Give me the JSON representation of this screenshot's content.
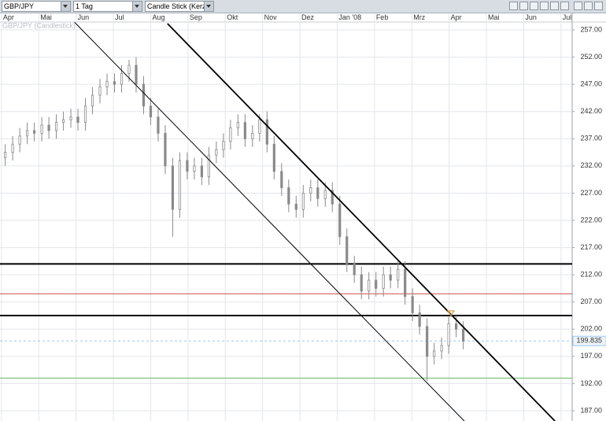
{
  "toolbar": {
    "symbol": "GBP/JPY",
    "period": "1 Tag",
    "style": "Candle Stick (Kerze"
  },
  "chart_data": {
    "type": "candlestick",
    "watermark": "GBP/JPY (Candlestick)",
    "xlim": [
      -0.04,
      15.3
    ],
    "xticks": [
      {
        "value": 0,
        "label": "Apr"
      },
      {
        "value": 1,
        "label": "Mai"
      },
      {
        "value": 2,
        "label": "Jun"
      },
      {
        "value": 3,
        "label": "Jul"
      },
      {
        "value": 4,
        "label": "Aug"
      },
      {
        "value": 5,
        "label": "Sep"
      },
      {
        "value": 6,
        "label": "Okt"
      },
      {
        "value": 7,
        "label": "Nov"
      },
      {
        "value": 8,
        "label": "Dez"
      },
      {
        "value": 9,
        "label": "Jan '08"
      },
      {
        "value": 10,
        "label": "Feb"
      },
      {
        "value": 11,
        "label": "Mrz"
      },
      {
        "value": 12,
        "label": "Apr"
      },
      {
        "value": 13,
        "label": "Mai"
      },
      {
        "value": 14,
        "label": "Jun"
      },
      {
        "value": 15,
        "label": "Jul"
      }
    ],
    "ylim": [
      185.12,
      258.45
    ],
    "yticks": [
      {
        "value": 187,
        "label": "187.00"
      },
      {
        "value": 192,
        "label": "192.00"
      },
      {
        "value": 197,
        "label": "197.00"
      },
      {
        "value": 202,
        "label": "202.00"
      },
      {
        "value": 207,
        "label": "207.00"
      },
      {
        "value": 212,
        "label": "212.00"
      },
      {
        "value": 217,
        "label": "217.00"
      },
      {
        "value": 222,
        "label": "222.00"
      },
      {
        "value": 227,
        "label": "227.00"
      },
      {
        "value": 232,
        "label": "232.00"
      },
      {
        "value": 237,
        "label": "237.00"
      },
      {
        "value": 242,
        "label": "242.00"
      },
      {
        "value": 247,
        "label": "247.00"
      },
      {
        "value": 252,
        "label": "252.00"
      },
      {
        "value": 257,
        "label": "257.00"
      }
    ],
    "grid": true,
    "color": "#8a8a8a",
    "x": [
      0.1,
      0.3,
      0.49,
      0.69,
      0.88,
      1.08,
      1.27,
      1.47,
      1.66,
      1.86,
      2.05,
      2.25,
      2.44,
      2.64,
      2.83,
      3.03,
      3.22,
      3.42,
      3.61,
      3.81,
      4.0,
      4.2,
      4.39,
      4.59,
      4.78,
      4.98,
      5.17,
      5.37,
      5.56,
      5.76,
      5.95,
      6.14,
      6.34,
      6.53,
      6.73,
      6.92,
      7.12,
      7.31,
      7.51,
      7.7,
      7.9,
      8.09,
      8.29,
      8.48,
      8.68,
      8.87,
      9.07,
      9.26,
      9.46,
      9.65,
      9.85,
      10.04,
      10.24,
      10.43,
      10.63,
      10.82,
      11.02,
      11.21,
      11.41,
      11.6,
      11.8,
      11.99,
      12.19,
      12.38
    ],
    "ohlc": [
      [
        233.5,
        236,
        232,
        234.5
      ],
      [
        234.5,
        237.5,
        233,
        236
      ],
      [
        236,
        239,
        234.5,
        237.5
      ],
      [
        237.5,
        240,
        236,
        238.5
      ],
      [
        238.5,
        240,
        236.5,
        238
      ],
      [
        238,
        241,
        236.5,
        239.5
      ],
      [
        239.5,
        241,
        237,
        238.5
      ],
      [
        238.5,
        241.5,
        237,
        240
      ],
      [
        240,
        242,
        238.5,
        240.5
      ],
      [
        240.5,
        242.5,
        239,
        241
      ],
      [
        241,
        242.5,
        238.5,
        240
      ],
      [
        240,
        244.5,
        238.5,
        243
      ],
      [
        243,
        246.5,
        241.5,
        245
      ],
      [
        245,
        248,
        243.5,
        246.5
      ],
      [
        246.5,
        249,
        245,
        247.5
      ],
      [
        247.5,
        249,
        245.5,
        247
      ],
      [
        247,
        250.5,
        245.5,
        249
      ],
      [
        249,
        251.5,
        247.5,
        250.5
      ],
      [
        250.5,
        252,
        245.5,
        247
      ],
      [
        247,
        248.5,
        241.5,
        243
      ],
      [
        243,
        244.5,
        239.5,
        241
      ],
      [
        241,
        242.5,
        236.5,
        238
      ],
      [
        238,
        239.5,
        230.5,
        232
      ],
      [
        232,
        233.5,
        219,
        224
      ],
      [
        224,
        234.5,
        222.5,
        233
      ],
      [
        233,
        234.5,
        229.5,
        231
      ],
      [
        231,
        233.5,
        229.5,
        232
      ],
      [
        232,
        233.5,
        228.5,
        230
      ],
      [
        230,
        235.5,
        228.5,
        234
      ],
      [
        234,
        236.5,
        232.5,
        235
      ],
      [
        235,
        238,
        233.5,
        236.5
      ],
      [
        236.5,
        240.5,
        235,
        239
      ],
      [
        239,
        241.5,
        237.5,
        240
      ],
      [
        240,
        241.5,
        235.5,
        237
      ],
      [
        237,
        239.5,
        235.5,
        238
      ],
      [
        238,
        241.5,
        236.5,
        240.5
      ],
      [
        240.5,
        242,
        234.5,
        236
      ],
      [
        236,
        237.5,
        229.5,
        231
      ],
      [
        231,
        232.5,
        226.5,
        228
      ],
      [
        228,
        229.5,
        223.5,
        225
      ],
      [
        225,
        226.5,
        222.5,
        224
      ],
      [
        224,
        228.5,
        222.5,
        227
      ],
      [
        227,
        229.5,
        225.5,
        228
      ],
      [
        228,
        229.5,
        224.5,
        226
      ],
      [
        226,
        229,
        224.5,
        227.5
      ],
      [
        227.5,
        229,
        223.5,
        225
      ],
      [
        225,
        226.5,
        217.5,
        219
      ],
      [
        219,
        220.5,
        212.5,
        214
      ],
      [
        214,
        215.5,
        210.5,
        212
      ],
      [
        212,
        213.5,
        207.5,
        209
      ],
      [
        209,
        212.5,
        207.5,
        211
      ],
      [
        211,
        212.5,
        208,
        209.5
      ],
      [
        209.5,
        213.5,
        208,
        212
      ],
      [
        212,
        213.5,
        209.5,
        211
      ],
      [
        211,
        214.5,
        209.5,
        213
      ],
      [
        213,
        214.5,
        206.5,
        208
      ],
      [
        208,
        209.5,
        203.5,
        205
      ],
      [
        205,
        206.5,
        201,
        202.5
      ],
      [
        202.5,
        204,
        192.5,
        197
      ],
      [
        197,
        199.5,
        195.5,
        198
      ],
      [
        198,
        200.5,
        196.5,
        199
      ],
      [
        199,
        204.5,
        197.5,
        203
      ],
      [
        203,
        204.5,
        200.5,
        202
      ],
      [
        202,
        203.5,
        198.3,
        199.8
      ]
    ],
    "levels": [
      {
        "value": 214,
        "color": "#000000"
      },
      {
        "value": 208.5,
        "color": "#d05050"
      },
      {
        "value": 204.5,
        "color": "#000000"
      },
      {
        "value": 193,
        "color": "#66bb66"
      }
    ],
    "trendlines": [
      {
        "x": [
          4.45,
          14.84
        ],
        "y": [
          258.16,
          185.1
        ]
      },
      {
        "x": [
          1.96,
          12.41
        ],
        "y": [
          258.4,
          185.1
        ]
      }
    ],
    "last_price": 199.835
  }
}
